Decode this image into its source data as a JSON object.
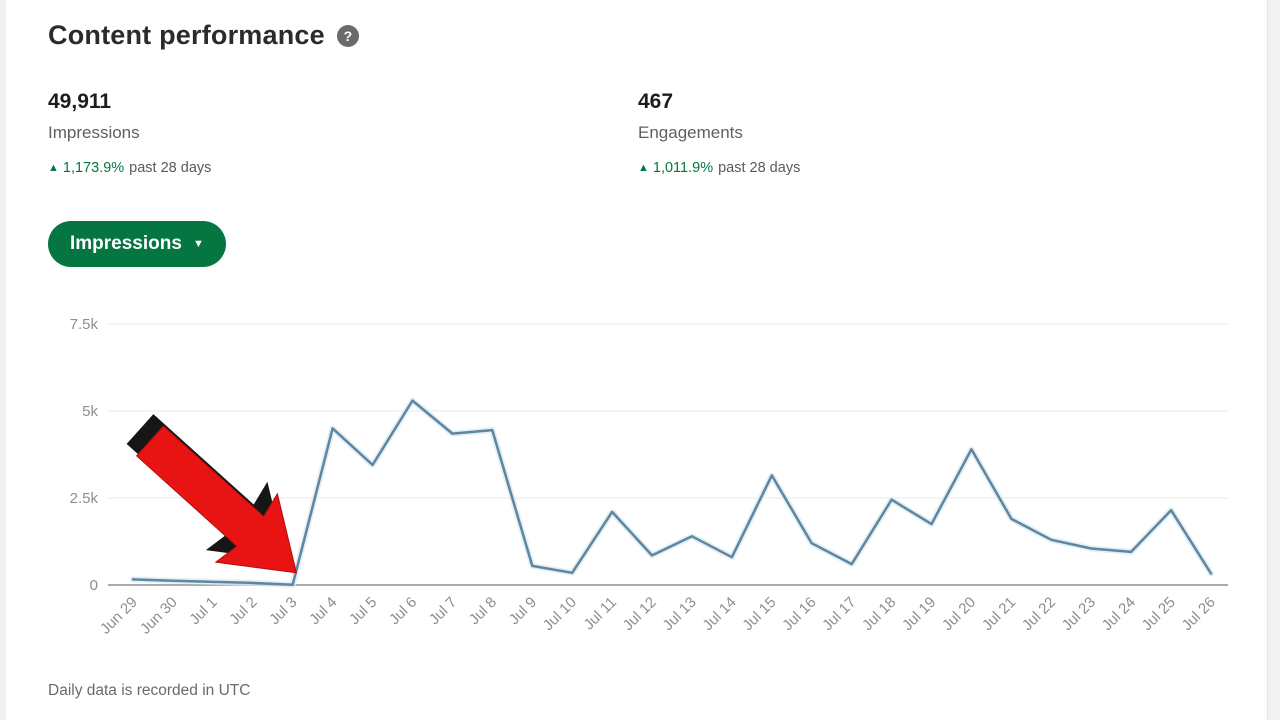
{
  "header": {
    "title": "Content performance",
    "help_icon": "?"
  },
  "stats": [
    {
      "value": "49,911",
      "label": "Impressions",
      "direction_icon": "▲",
      "change": "1,173.9%",
      "period": "past 28 days"
    },
    {
      "value": "467",
      "label": "Engagements",
      "direction_icon": "▲",
      "change": "1,011.9%",
      "period": "past 28 days"
    }
  ],
  "metric_dropdown": {
    "label": "Impressions",
    "caret_icon": "▼"
  },
  "chart_data": {
    "type": "line",
    "title": "Daily impressions line chart",
    "categories": [
      "Jun 29",
      "Jun 30",
      "Jul 1",
      "Jul 2",
      "Jul 3",
      "Jul 4",
      "Jul 5",
      "Jul 6",
      "Jul 7",
      "Jul 8",
      "Jul 9",
      "Jul 10",
      "Jul 11",
      "Jul 12",
      "Jul 13",
      "Jul 14",
      "Jul 15",
      "Jul 16",
      "Jul 17",
      "Jul 18",
      "Jul 19",
      "Jul 20",
      "Jul 21",
      "Jul 22",
      "Jul 23",
      "Jul 24",
      "Jul 25",
      "Jul 26"
    ],
    "values": [
      160,
      120,
      90,
      60,
      10,
      4500,
      3450,
      5300,
      4350,
      4450,
      550,
      350,
      2100,
      850,
      1400,
      800,
      3150,
      1200,
      600,
      2450,
      1750,
      3900,
      1900,
      1300,
      1050,
      950,
      2150,
      330
    ],
    "y_ticks": [
      {
        "value": 0,
        "label": "0"
      },
      {
        "value": 2500,
        "label": "2.5k"
      },
      {
        "value": 5000,
        "label": "5k"
      },
      {
        "value": 7500,
        "label": "7.5k"
      }
    ],
    "ylim": [
      0,
      7500
    ],
    "xlabel": "",
    "ylabel": "",
    "grid": true,
    "legend": "none",
    "line_color": "#5e86a0",
    "line_glow_color": "#d9e8f2",
    "gridline_color": "#e9e9e9",
    "axis_color": "#8f8f8f",
    "tick_text_color": "#8e8e8e",
    "annotation": {
      "shape": "red-3d-arrow",
      "points_at": "Jul 3",
      "fill": "#e81414",
      "shadow": "#161616"
    }
  },
  "footer": {
    "note": "Daily data is recorded in UTC"
  },
  "colors": {
    "accent_green": "#057642",
    "positive_change": "#057642"
  }
}
